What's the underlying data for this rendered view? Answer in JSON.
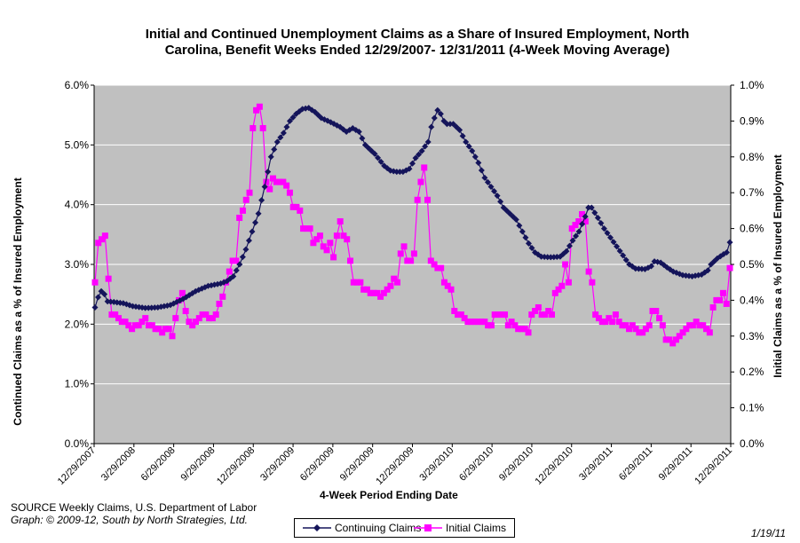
{
  "chart_data": {
    "type": "line",
    "title_lines": [
      "Initial and Continued Unemployment Claims as a Share of Insured Employment, North",
      "Carolina, Benefit Weeks Ended 12/29/2007- 12/31/2011 (4-Week Moving Average)"
    ],
    "xlabel": "4-Week Period Ending Date",
    "ylabel_left": "Continued Claims as a % of Insured Employment",
    "ylabel_right": "Initial Claims as a % of Insured Employment",
    "x_ticks": [
      "12/29/2007",
      "3/29/2008",
      "6/29/2008",
      "9/29/2008",
      "12/29/2008",
      "3/29/2009",
      "6/29/2009",
      "9/29/2009",
      "12/29/2009",
      "3/29/2010",
      "6/29/2010",
      "9/29/2010",
      "12/29/2010",
      "3/29/2011",
      "6/29/2011",
      "9/29/2011",
      "12/29/2011"
    ],
    "y_left_ticks": [
      "0.0%",
      "1.0%",
      "2.0%",
      "3.0%",
      "4.0%",
      "5.0%",
      "6.0%"
    ],
    "y_right_ticks": [
      "0.0%",
      "0.1%",
      "0.2%",
      "0.3%",
      "0.4%",
      "0.5%",
      "0.6%",
      "0.7%",
      "0.8%",
      "0.9%",
      "1.0%"
    ],
    "y_left_range": [
      0,
      6
    ],
    "y_right_range": [
      0,
      1
    ],
    "grid": true,
    "legend_position": "bottom",
    "series": [
      {
        "name": "Continuing Claims",
        "axis": "left",
        "color": "#14145a",
        "marker": "diamond",
        "anchors": [
          [
            0,
            2.28
          ],
          [
            1,
            2.45
          ],
          [
            2,
            2.55
          ],
          [
            3,
            2.5
          ],
          [
            4,
            2.38
          ],
          [
            6,
            2.37
          ],
          [
            9,
            2.35
          ],
          [
            12,
            2.3
          ],
          [
            16,
            2.27
          ],
          [
            20,
            2.28
          ],
          [
            24,
            2.32
          ],
          [
            28,
            2.42
          ],
          [
            32,
            2.55
          ],
          [
            36,
            2.64
          ],
          [
            40,
            2.68
          ],
          [
            42,
            2.72
          ],
          [
            44,
            2.8
          ],
          [
            46,
            3.0
          ],
          [
            48,
            3.25
          ],
          [
            50,
            3.55
          ],
          [
            52,
            3.85
          ],
          [
            54,
            4.3
          ],
          [
            56,
            4.8
          ],
          [
            58,
            5.05
          ],
          [
            60,
            5.2
          ],
          [
            62,
            5.4
          ],
          [
            64,
            5.52
          ],
          [
            66,
            5.6
          ],
          [
            68,
            5.62
          ],
          [
            70,
            5.55
          ],
          [
            72,
            5.45
          ],
          [
            75,
            5.38
          ],
          [
            78,
            5.3
          ],
          [
            80,
            5.22
          ],
          [
            82,
            5.28
          ],
          [
            84,
            5.22
          ],
          [
            86,
            5.0
          ],
          [
            89,
            4.85
          ],
          [
            92,
            4.65
          ],
          [
            94,
            4.57
          ],
          [
            96,
            4.55
          ],
          [
            98,
            4.55
          ],
          [
            100,
            4.6
          ],
          [
            102,
            4.78
          ],
          [
            104,
            4.9
          ],
          [
            106,
            5.05
          ],
          [
            107,
            5.3
          ],
          [
            108,
            5.45
          ],
          [
            109,
            5.58
          ],
          [
            110,
            5.52
          ],
          [
            111,
            5.4
          ],
          [
            112,
            5.35
          ],
          [
            114,
            5.35
          ],
          [
            116,
            5.25
          ],
          [
            118,
            5.05
          ],
          [
            120,
            4.9
          ],
          [
            122,
            4.7
          ],
          [
            124,
            4.45
          ],
          [
            126,
            4.3
          ],
          [
            128,
            4.15
          ],
          [
            130,
            3.95
          ],
          [
            132,
            3.85
          ],
          [
            134,
            3.75
          ],
          [
            136,
            3.55
          ],
          [
            138,
            3.35
          ],
          [
            140,
            3.2
          ],
          [
            142,
            3.13
          ],
          [
            145,
            3.12
          ],
          [
            148,
            3.13
          ],
          [
            150,
            3.22
          ],
          [
            152,
            3.4
          ],
          [
            154,
            3.55
          ],
          [
            156,
            3.8
          ],
          [
            157,
            3.95
          ],
          [
            158,
            3.95
          ],
          [
            160,
            3.78
          ],
          [
            162,
            3.6
          ],
          [
            164,
            3.45
          ],
          [
            166,
            3.3
          ],
          [
            168,
            3.15
          ],
          [
            170,
            3.0
          ],
          [
            172,
            2.93
          ],
          [
            175,
            2.92
          ],
          [
            177,
            2.97
          ],
          [
            178,
            3.05
          ],
          [
            180,
            3.03
          ],
          [
            182,
            2.95
          ],
          [
            184,
            2.88
          ],
          [
            187,
            2.82
          ],
          [
            190,
            2.8
          ],
          [
            193,
            2.83
          ],
          [
            195,
            2.9
          ],
          [
            196,
            3.0
          ],
          [
            198,
            3.1
          ],
          [
            200,
            3.17
          ],
          [
            201,
            3.2
          ],
          [
            202,
            3.37
          ]
        ]
      },
      {
        "name": "Initial Claims",
        "axis": "right",
        "color": "#ff00ff",
        "marker": "square",
        "anchors": [
          [
            0,
            0.45
          ],
          [
            1,
            0.56
          ],
          [
            2,
            0.57
          ],
          [
            3,
            0.58
          ],
          [
            4,
            0.46
          ],
          [
            5,
            0.36
          ],
          [
            6,
            0.36
          ],
          [
            7,
            0.35
          ],
          [
            8,
            0.34
          ],
          [
            9,
            0.34
          ],
          [
            10,
            0.33
          ],
          [
            11,
            0.32
          ],
          [
            12,
            0.33
          ],
          [
            13,
            0.33
          ],
          [
            14,
            0.34
          ],
          [
            15,
            0.35
          ],
          [
            16,
            0.33
          ],
          [
            17,
            0.33
          ],
          [
            18,
            0.32
          ],
          [
            19,
            0.32
          ],
          [
            20,
            0.31
          ],
          [
            21,
            0.32
          ],
          [
            22,
            0.32
          ],
          [
            23,
            0.3
          ],
          [
            24,
            0.35
          ],
          [
            25,
            0.4
          ],
          [
            26,
            0.42
          ],
          [
            27,
            0.37
          ],
          [
            28,
            0.34
          ],
          [
            29,
            0.33
          ],
          [
            30,
            0.34
          ],
          [
            31,
            0.35
          ],
          [
            32,
            0.36
          ],
          [
            33,
            0.36
          ],
          [
            34,
            0.35
          ],
          [
            35,
            0.35
          ],
          [
            36,
            0.36
          ],
          [
            37,
            0.39
          ],
          [
            38,
            0.41
          ],
          [
            39,
            0.45
          ],
          [
            40,
            0.48
          ],
          [
            41,
            0.51
          ],
          [
            42,
            0.51
          ],
          [
            43,
            0.63
          ],
          [
            44,
            0.65
          ],
          [
            45,
            0.68
          ],
          [
            46,
            0.7
          ],
          [
            47,
            0.88
          ],
          [
            48,
            0.93
          ],
          [
            49,
            0.94
          ],
          [
            50,
            0.88
          ],
          [
            51,
            0.73
          ],
          [
            52,
            0.71
          ],
          [
            53,
            0.74
          ],
          [
            54,
            0.73
          ],
          [
            55,
            0.73
          ],
          [
            56,
            0.73
          ],
          [
            57,
            0.72
          ],
          [
            58,
            0.7
          ],
          [
            59,
            0.66
          ],
          [
            60,
            0.66
          ],
          [
            61,
            0.65
          ],
          [
            62,
            0.6
          ],
          [
            63,
            0.6
          ],
          [
            64,
            0.6
          ],
          [
            65,
            0.56
          ],
          [
            66,
            0.57
          ],
          [
            67,
            0.58
          ],
          [
            68,
            0.55
          ],
          [
            69,
            0.54
          ],
          [
            70,
            0.56
          ],
          [
            71,
            0.52
          ],
          [
            72,
            0.58
          ],
          [
            73,
            0.62
          ],
          [
            74,
            0.58
          ],
          [
            75,
            0.57
          ],
          [
            76,
            0.51
          ],
          [
            77,
            0.45
          ],
          [
            78,
            0.45
          ],
          [
            79,
            0.45
          ],
          [
            80,
            0.43
          ],
          [
            81,
            0.43
          ],
          [
            82,
            0.42
          ],
          [
            83,
            0.42
          ],
          [
            84,
            0.42
          ],
          [
            85,
            0.41
          ],
          [
            86,
            0.42
          ],
          [
            87,
            0.43
          ],
          [
            88,
            0.44
          ],
          [
            89,
            0.46
          ],
          [
            90,
            0.45
          ],
          [
            91,
            0.53
          ],
          [
            92,
            0.55
          ],
          [
            93,
            0.51
          ],
          [
            94,
            0.51
          ],
          [
            95,
            0.53
          ],
          [
            96,
            0.68
          ],
          [
            97,
            0.73
          ],
          [
            98,
            0.77
          ],
          [
            99,
            0.68
          ],
          [
            100,
            0.51
          ],
          [
            101,
            0.5
          ],
          [
            102,
            0.49
          ],
          [
            103,
            0.49
          ],
          [
            104,
            0.45
          ],
          [
            105,
            0.44
          ],
          [
            106,
            0.43
          ],
          [
            107,
            0.37
          ],
          [
            108,
            0.36
          ],
          [
            109,
            0.36
          ],
          [
            110,
            0.35
          ],
          [
            111,
            0.34
          ],
          [
            112,
            0.34
          ],
          [
            113,
            0.34
          ],
          [
            114,
            0.34
          ],
          [
            115,
            0.34
          ],
          [
            116,
            0.34
          ],
          [
            117,
            0.33
          ],
          [
            118,
            0.33
          ],
          [
            119,
            0.36
          ],
          [
            120,
            0.36
          ],
          [
            121,
            0.36
          ],
          [
            122,
            0.36
          ],
          [
            123,
            0.33
          ],
          [
            124,
            0.34
          ],
          [
            125,
            0.33
          ],
          [
            126,
            0.32
          ],
          [
            127,
            0.32
          ],
          [
            128,
            0.32
          ],
          [
            129,
            0.31
          ],
          [
            130,
            0.36
          ],
          [
            131,
            0.37
          ],
          [
            132,
            0.38
          ],
          [
            133,
            0.36
          ],
          [
            134,
            0.36
          ],
          [
            135,
            0.37
          ],
          [
            136,
            0.36
          ],
          [
            137,
            0.42
          ],
          [
            138,
            0.43
          ],
          [
            139,
            0.44
          ],
          [
            140,
            0.5
          ],
          [
            141,
            0.45
          ],
          [
            142,
            0.6
          ],
          [
            143,
            0.61
          ],
          [
            144,
            0.62
          ],
          [
            145,
            0.64
          ],
          [
            146,
            0.62
          ],
          [
            147,
            0.48
          ],
          [
            148,
            0.45
          ],
          [
            149,
            0.36
          ],
          [
            150,
            0.35
          ],
          [
            151,
            0.34
          ],
          [
            152,
            0.34
          ],
          [
            153,
            0.35
          ],
          [
            154,
            0.34
          ],
          [
            155,
            0.36
          ],
          [
            156,
            0.34
          ],
          [
            157,
            0.33
          ],
          [
            158,
            0.33
          ],
          [
            159,
            0.32
          ],
          [
            160,
            0.33
          ],
          [
            161,
            0.32
          ],
          [
            162,
            0.31
          ],
          [
            163,
            0.31
          ],
          [
            164,
            0.32
          ],
          [
            165,
            0.33
          ],
          [
            166,
            0.37
          ],
          [
            167,
            0.37
          ],
          [
            168,
            0.35
          ],
          [
            169,
            0.33
          ],
          [
            170,
            0.29
          ],
          [
            171,
            0.29
          ],
          [
            172,
            0.28
          ],
          [
            173,
            0.29
          ],
          [
            174,
            0.3
          ],
          [
            175,
            0.31
          ],
          [
            176,
            0.32
          ],
          [
            177,
            0.33
          ],
          [
            178,
            0.33
          ],
          [
            179,
            0.34
          ],
          [
            180,
            0.33
          ],
          [
            181,
            0.33
          ],
          [
            182,
            0.32
          ],
          [
            183,
            0.31
          ],
          [
            184,
            0.38
          ],
          [
            185,
            0.4
          ],
          [
            186,
            0.4
          ],
          [
            187,
            0.42
          ],
          [
            188,
            0.39
          ],
          [
            189,
            0.49
          ]
        ]
      }
    ]
  },
  "legend": {
    "continuing_label": "Continuing Claims",
    "initial_label": "Initial Claims"
  },
  "footer": {
    "source": "SOURCE  Weekly Claims, U.S. Department of Labor",
    "credit": "Graph: © 2009-12, South by North Strategies, Ltd.",
    "date": "1/19/11"
  }
}
